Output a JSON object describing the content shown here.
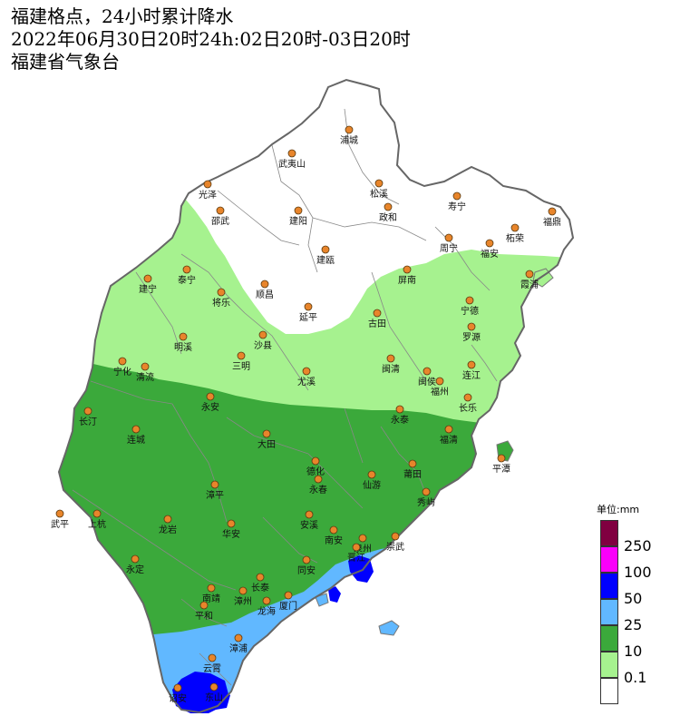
{
  "header": {
    "line1": "福建格点，24小时累计降水",
    "line2": "2022年06月30日20时24h:02日20时-03日20时",
    "line3": "福建省气象台"
  },
  "colors": {
    "none": "#ffffff",
    "light": "#a6f28f",
    "moderate": "#3ba93b",
    "heavy": "#61b8ff",
    "rainstorm": "#0000fe",
    "heavy_rainstorm": "#fa00fa",
    "extreme": "#800040",
    "border": "#777777",
    "city_dot": "#e8852b"
  },
  "legend": {
    "unit": "单位:mm",
    "levels": [
      {
        "label": "250",
        "color": "#800040"
      },
      {
        "label": "100",
        "color": "#fa00fa"
      },
      {
        "label": "50",
        "color": "#0000fe"
      },
      {
        "label": "25",
        "color": "#61b8ff"
      },
      {
        "label": "10",
        "color": "#3ba93b"
      },
      {
        "label": "0.1",
        "color": "#a6f28f"
      },
      {
        "label": "",
        "color": "#ffffff"
      }
    ]
  },
  "cities": [
    {
      "name": "浦城"
    },
    {
      "name": "武夷山"
    },
    {
      "name": "光泽"
    },
    {
      "name": "松溪"
    },
    {
      "name": "政和"
    },
    {
      "name": "寿宁"
    },
    {
      "name": "福鼎"
    },
    {
      "name": "柘荣"
    },
    {
      "name": "邵武"
    },
    {
      "name": "建阳"
    },
    {
      "name": "周宁"
    },
    {
      "name": "福安"
    },
    {
      "name": "建瓯"
    },
    {
      "name": "泰宁"
    },
    {
      "name": "建宁"
    },
    {
      "name": "将乐"
    },
    {
      "name": "顺昌"
    },
    {
      "name": "屏南"
    },
    {
      "name": "霞浦"
    },
    {
      "name": "延平"
    },
    {
      "name": "宁德"
    },
    {
      "name": "古田"
    },
    {
      "name": "罗源"
    },
    {
      "name": "明溪"
    },
    {
      "name": "沙县"
    },
    {
      "name": "三明"
    },
    {
      "name": "宁化"
    },
    {
      "name": "清流"
    },
    {
      "name": "尤溪"
    },
    {
      "name": "闽清"
    },
    {
      "name": "闽侯"
    },
    {
      "name": "连江"
    },
    {
      "name": "福州"
    },
    {
      "name": "长乐"
    },
    {
      "name": "永安"
    },
    {
      "name": "永泰"
    },
    {
      "name": "长汀"
    },
    {
      "name": "连城"
    },
    {
      "name": "福清"
    },
    {
      "name": "大田"
    },
    {
      "name": "平潭"
    },
    {
      "name": "德化"
    },
    {
      "name": "莆田"
    },
    {
      "name": "永春"
    },
    {
      "name": "仙游"
    },
    {
      "name": "漳平"
    },
    {
      "name": "秀屿"
    },
    {
      "name": "武平"
    },
    {
      "name": "上杭"
    },
    {
      "name": "龙岩"
    },
    {
      "name": "华安"
    },
    {
      "name": "安溪"
    },
    {
      "name": "南安"
    },
    {
      "name": "泉州"
    },
    {
      "name": "崇武"
    },
    {
      "name": "晋江"
    },
    {
      "name": "永定"
    },
    {
      "name": "同安"
    },
    {
      "name": "长泰"
    },
    {
      "name": "南靖"
    },
    {
      "name": "漳州"
    },
    {
      "name": "厦门"
    },
    {
      "name": "龙海"
    },
    {
      "name": "平和"
    },
    {
      "name": "漳浦"
    },
    {
      "name": "云霄"
    },
    {
      "name": "诏安"
    },
    {
      "name": "东山"
    }
  ]
}
